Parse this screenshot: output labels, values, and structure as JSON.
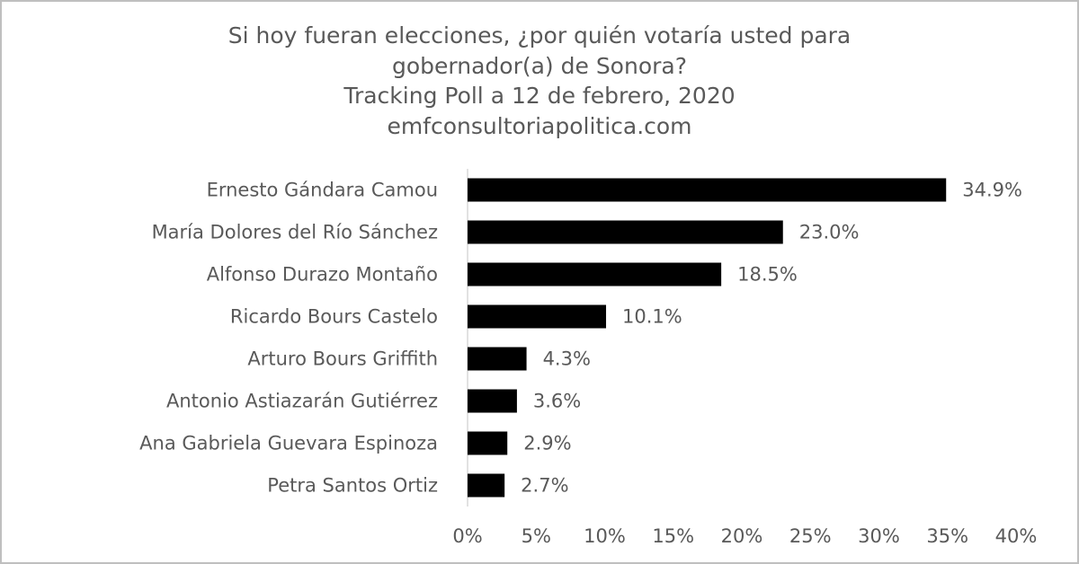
{
  "chart_data": {
    "type": "bar",
    "orientation": "horizontal",
    "title": [
      "Si hoy fueran elecciones, ¿por quién votaría usted para",
      "gobernador(a) de Sonora?",
      "Tracking Poll a 12 de febrero, 2020",
      "emfconsultoriapolitica.com"
    ],
    "categories": [
      "Ernesto Gándara Camou",
      "María Dolores del Río Sánchez",
      "Alfonso Durazo Montaño",
      "Ricardo Bours Castelo",
      "Arturo Bours Griffith",
      "Antonio Astiazarán Gutiérrez",
      "Ana Gabriela Guevara Espinoza",
      "Petra Santos Ortiz"
    ],
    "values": [
      34.9,
      23.0,
      18.5,
      10.1,
      4.3,
      3.6,
      2.9,
      2.7
    ],
    "value_labels": [
      "34.9%",
      "23.0%",
      "18.5%",
      "10.1%",
      "4.3%",
      "3.6%",
      "2.9%",
      "2.7%"
    ],
    "color": "#000000",
    "xlim": [
      0,
      40
    ],
    "xticks": [
      {
        "value": 0,
        "label": "0%"
      },
      {
        "value": 5,
        "label": "5%"
      },
      {
        "value": 10,
        "label": "10%"
      },
      {
        "value": 15,
        "label": "15%"
      },
      {
        "value": 20,
        "label": "20%"
      },
      {
        "value": 25,
        "label": "25%"
      },
      {
        "value": 30,
        "label": "30%"
      },
      {
        "value": 35,
        "label": "35%"
      },
      {
        "value": 40,
        "label": "40%"
      }
    ],
    "grid": false
  }
}
